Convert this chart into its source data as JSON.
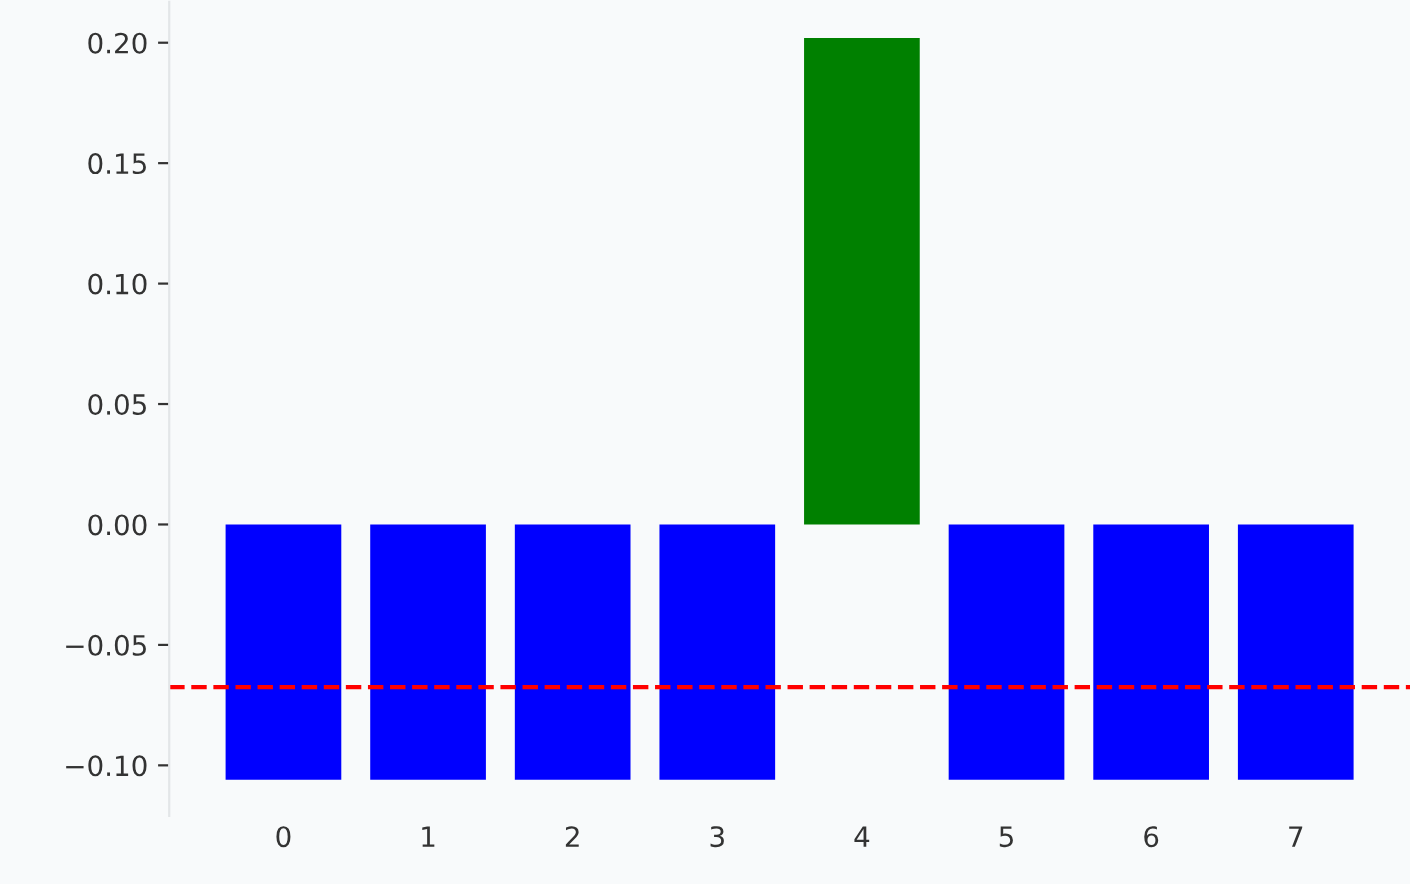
{
  "chart_data": {
    "type": "bar",
    "categories": [
      "0",
      "1",
      "2",
      "3",
      "4",
      "5",
      "6",
      "7"
    ],
    "values": [
      -0.106,
      -0.106,
      -0.106,
      -0.106,
      0.202,
      -0.106,
      -0.106,
      -0.106
    ],
    "colors": [
      "#0000ff",
      "#0000ff",
      "#0000ff",
      "#0000ff",
      "#008000",
      "#0000ff",
      "#0000ff",
      "#0000ff"
    ],
    "ylim": [
      -0.121,
      0.217
    ],
    "yticks": [
      {
        "value": -0.1,
        "label": "−0.10"
      },
      {
        "value": -0.05,
        "label": "−0.05"
      },
      {
        "value": 0,
        "label": "0.00"
      },
      {
        "value": 0.05,
        "label": "0.05"
      },
      {
        "value": 0.1,
        "label": "0.10"
      },
      {
        "value": 0.15,
        "label": "0.15"
      },
      {
        "value": 0.2,
        "label": "0.20"
      }
    ],
    "ref_lines": [
      {
        "axis": "y",
        "value": -0.0675,
        "color": "#ff0000",
        "line_style": "dashed"
      }
    ],
    "grid": false
  }
}
